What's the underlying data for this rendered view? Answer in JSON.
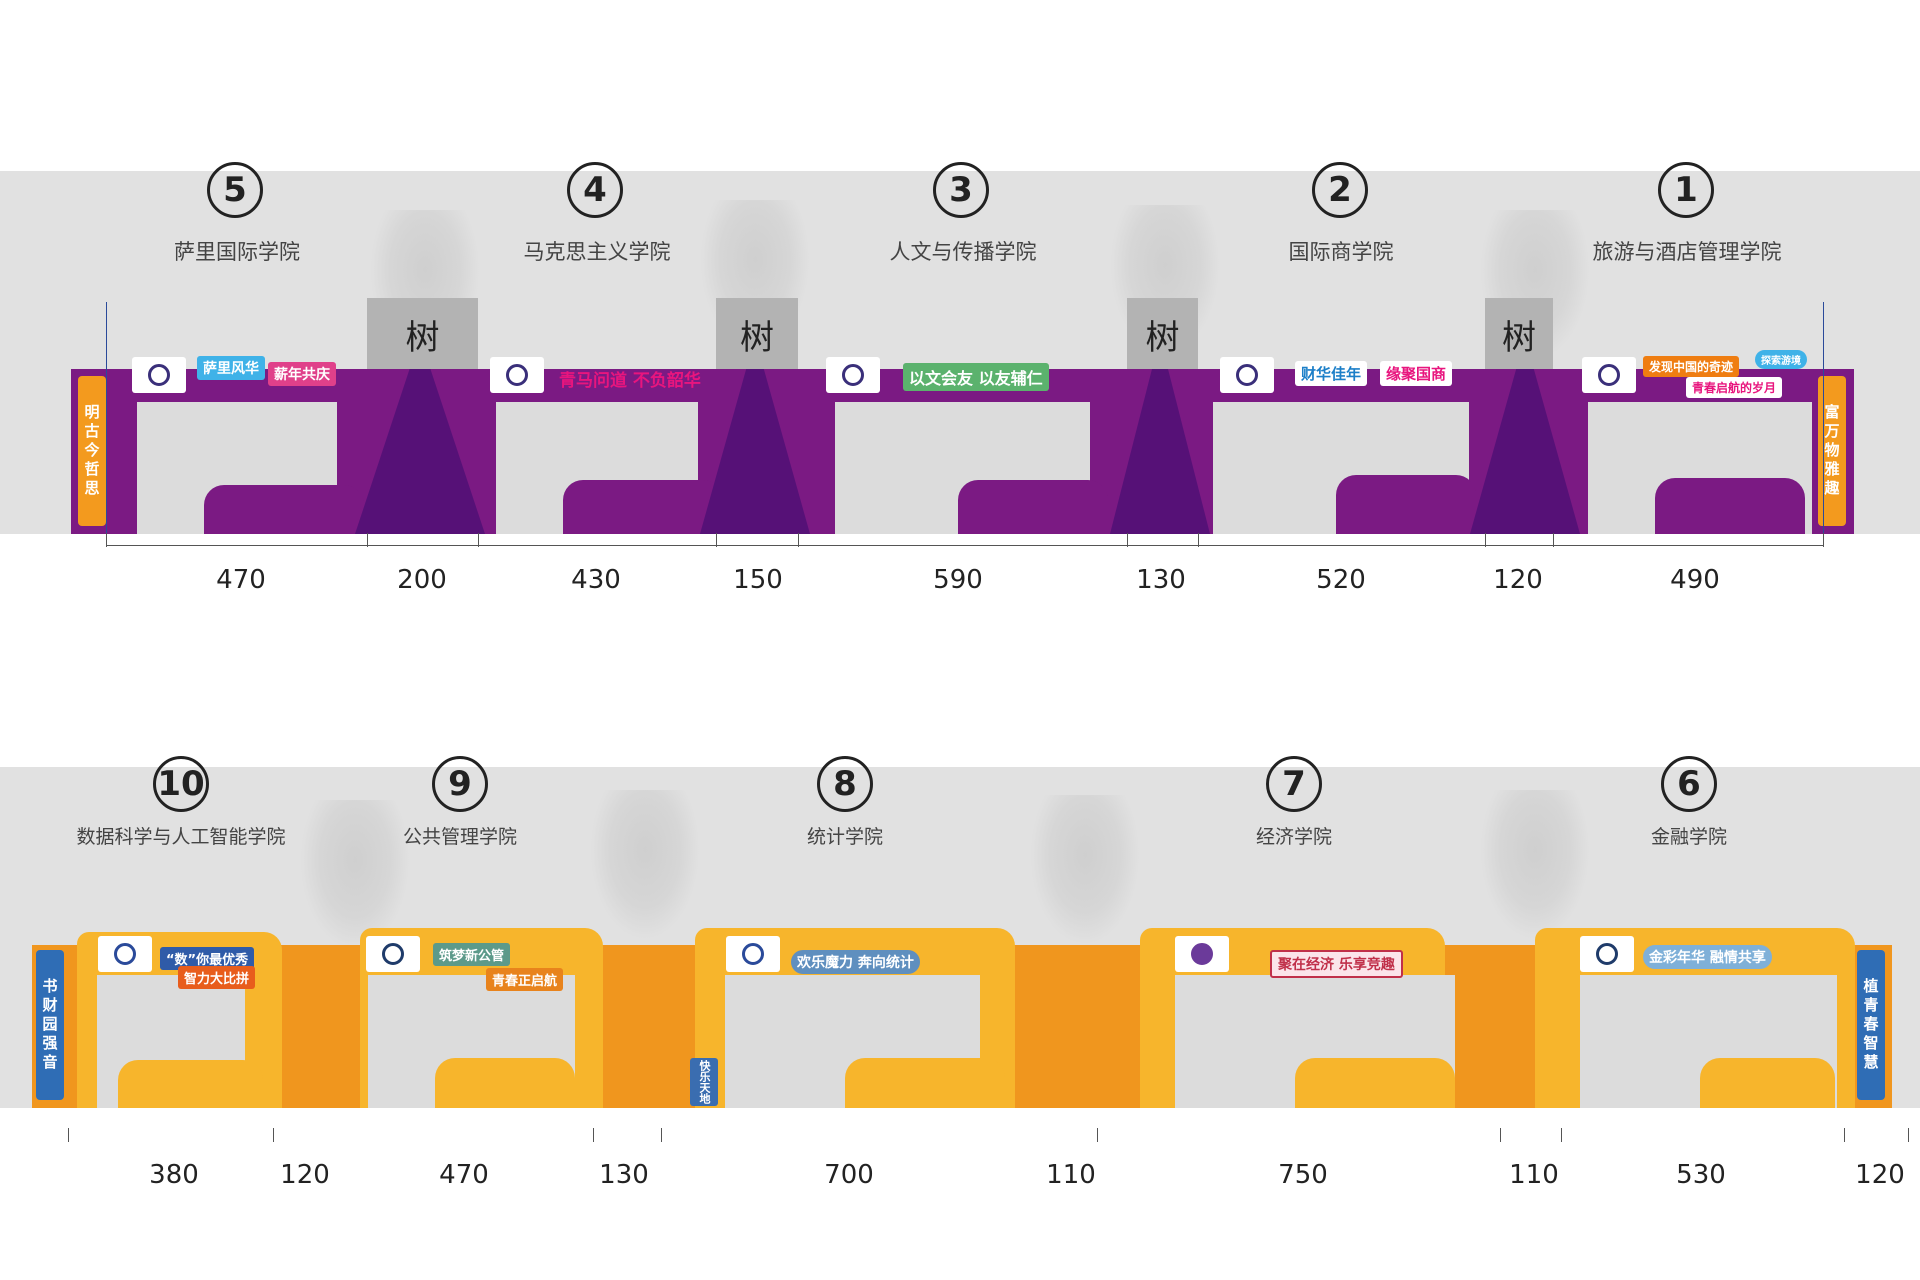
{
  "tree_label": "树",
  "top_row": {
    "colleges": [
      {
        "number": "5",
        "name": "萨里国际学院"
      },
      {
        "number": "4",
        "name": "马克思主义学院"
      },
      {
        "number": "3",
        "name": "人文与传播学院"
      },
      {
        "number": "2",
        "name": "国际商学院"
      },
      {
        "number": "1",
        "name": "旅游与酒店管理学院"
      }
    ],
    "dimensions": [
      "470",
      "200",
      "430",
      "150",
      "590",
      "130",
      "520",
      "120",
      "490"
    ],
    "slogans": [
      "萨里风华",
      "薪年共庆",
      "青马问道 不负韶华",
      "以文会友 以友辅仁",
      "财华佳年",
      "缘聚国商",
      "发现中国的奇迹",
      "青春启航的岁月",
      "探索游境"
    ],
    "side_banners": [
      "明古今哲思",
      "富万物雅趣"
    ],
    "colors": {
      "band": "#7b1a83",
      "dark": "#561177",
      "side": "#f39a1e"
    }
  },
  "bottom_row": {
    "colleges": [
      {
        "number": "10",
        "name": "数据科学与人工智能学院"
      },
      {
        "number": "9",
        "name": "公共管理学院"
      },
      {
        "number": "8",
        "name": "统计学院"
      },
      {
        "number": "7",
        "name": "经济学院"
      },
      {
        "number": "6",
        "name": "金融学院"
      }
    ],
    "dimensions": [
      "380",
      "120",
      "470",
      "130",
      "700",
      "110",
      "750",
      "110",
      "530",
      "120"
    ],
    "slogans": [
      "“数”你最优秀",
      "智力大比拼",
      "筑梦新公管",
      "青春正启航",
      "欢乐魔力 奔向统计",
      "快乐天地",
      "聚在经济 乐享竞趣",
      "金彩年华 融情共享"
    ],
    "side_banners": [
      "书财园强音",
      "植青春智慧"
    ],
    "colors": {
      "band": "#f7b52c",
      "dark": "#f0961e",
      "side": "#2f6db5"
    }
  }
}
